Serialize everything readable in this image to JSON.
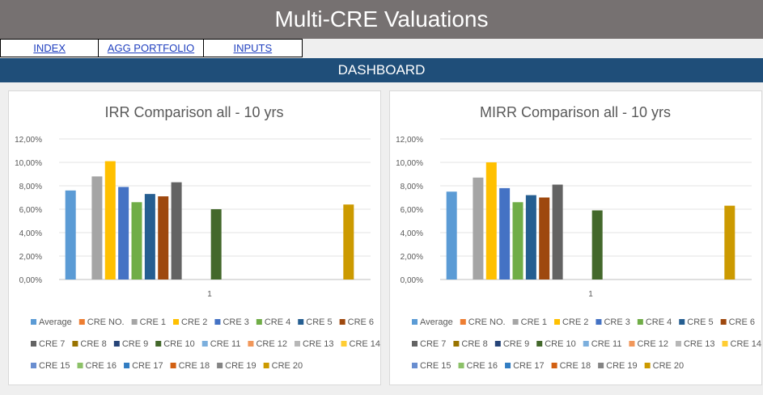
{
  "header": {
    "title": "Multi-CRE Valuations",
    "dashboard": "DASHBOARD"
  },
  "nav": {
    "items": [
      "INDEX",
      "AGG PORTFOLIO",
      "INPUTS"
    ]
  },
  "colors": {
    "Average": "#5b9bd5",
    "CRE NO.": "#ed7d31",
    "CRE 1": "#a5a5a5",
    "CRE 2": "#ffc000",
    "CRE 3": "#4472c4",
    "CRE 4": "#70ad47",
    "CRE 5": "#255e91",
    "CRE 6": "#9e480e",
    "CRE 7": "#636363",
    "CRE 8": "#997300",
    "CRE 9": "#264478",
    "CRE 10": "#43682b",
    "CRE 11": "#7cafdd",
    "CRE 12": "#f1975a",
    "CRE 13": "#b7b7b7",
    "CRE 14": "#ffcd33",
    "CRE 15": "#698ed0",
    "CRE 16": "#8cc168",
    "CRE 17": "#327dc2",
    "CRE 18": "#d26012",
    "CRE 19": "#848484",
    "CRE 20": "#cc9a00"
  },
  "chart_data": [
    {
      "type": "bar",
      "title": "IRR Comparison all - 10 yrs",
      "categories": [
        "1"
      ],
      "ylim": [
        0,
        0.12
      ],
      "yticks": [
        "0,00%",
        "2,00%",
        "4,00%",
        "6,00%",
        "8,00%",
        "10,00%",
        "12,00%"
      ],
      "grid": true,
      "legend_position": "bottom",
      "series": [
        {
          "name": "Average",
          "values": [
            0.076
          ]
        },
        {
          "name": "CRE NO.",
          "values": [
            null
          ]
        },
        {
          "name": "CRE 1",
          "values": [
            0.088
          ]
        },
        {
          "name": "CRE 2",
          "values": [
            0.101
          ]
        },
        {
          "name": "CRE 3",
          "values": [
            0.079
          ]
        },
        {
          "name": "CRE 4",
          "values": [
            0.066
          ]
        },
        {
          "name": "CRE 5",
          "values": [
            0.073
          ]
        },
        {
          "name": "CRE 6",
          "values": [
            0.071
          ]
        },
        {
          "name": "CRE 7",
          "values": [
            0.083
          ]
        },
        {
          "name": "CRE 8",
          "values": [
            null
          ]
        },
        {
          "name": "CRE 9",
          "values": [
            null
          ]
        },
        {
          "name": "CRE 10",
          "values": [
            0.06
          ]
        },
        {
          "name": "CRE 11",
          "values": [
            null
          ]
        },
        {
          "name": "CRE 12",
          "values": [
            null
          ]
        },
        {
          "name": "CRE 13",
          "values": [
            null
          ]
        },
        {
          "name": "CRE 14",
          "values": [
            null
          ]
        },
        {
          "name": "CRE 15",
          "values": [
            null
          ]
        },
        {
          "name": "CRE 16",
          "values": [
            null
          ]
        },
        {
          "name": "CRE 17",
          "values": [
            null
          ]
        },
        {
          "name": "CRE 18",
          "values": [
            null
          ]
        },
        {
          "name": "CRE 19",
          "values": [
            null
          ]
        },
        {
          "name": "CRE 20",
          "values": [
            0.064
          ]
        }
      ]
    },
    {
      "type": "bar",
      "title": "MIRR Comparison all - 10 yrs",
      "categories": [
        "1"
      ],
      "ylim": [
        0,
        0.12
      ],
      "yticks": [
        "0,00%",
        "2,00%",
        "4,00%",
        "6,00%",
        "8,00%",
        "10,00%",
        "12,00%"
      ],
      "grid": true,
      "legend_position": "bottom",
      "series": [
        {
          "name": "Average",
          "values": [
            0.075
          ]
        },
        {
          "name": "CRE NO.",
          "values": [
            null
          ]
        },
        {
          "name": "CRE 1",
          "values": [
            0.087
          ]
        },
        {
          "name": "CRE 2",
          "values": [
            0.1
          ]
        },
        {
          "name": "CRE 3",
          "values": [
            0.078
          ]
        },
        {
          "name": "CRE 4",
          "values": [
            0.066
          ]
        },
        {
          "name": "CRE 5",
          "values": [
            0.072
          ]
        },
        {
          "name": "CRE 6",
          "values": [
            0.07
          ]
        },
        {
          "name": "CRE 7",
          "values": [
            0.081
          ]
        },
        {
          "name": "CRE 8",
          "values": [
            null
          ]
        },
        {
          "name": "CRE 9",
          "values": [
            null
          ]
        },
        {
          "name": "CRE 10",
          "values": [
            0.059
          ]
        },
        {
          "name": "CRE 11",
          "values": [
            null
          ]
        },
        {
          "name": "CRE 12",
          "values": [
            null
          ]
        },
        {
          "name": "CRE 13",
          "values": [
            null
          ]
        },
        {
          "name": "CRE 14",
          "values": [
            null
          ]
        },
        {
          "name": "CRE 15",
          "values": [
            null
          ]
        },
        {
          "name": "CRE 16",
          "values": [
            null
          ]
        },
        {
          "name": "CRE 17",
          "values": [
            null
          ]
        },
        {
          "name": "CRE 18",
          "values": [
            null
          ]
        },
        {
          "name": "CRE 19",
          "values": [
            null
          ]
        },
        {
          "name": "CRE 20",
          "values": [
            0.063
          ]
        }
      ]
    }
  ]
}
